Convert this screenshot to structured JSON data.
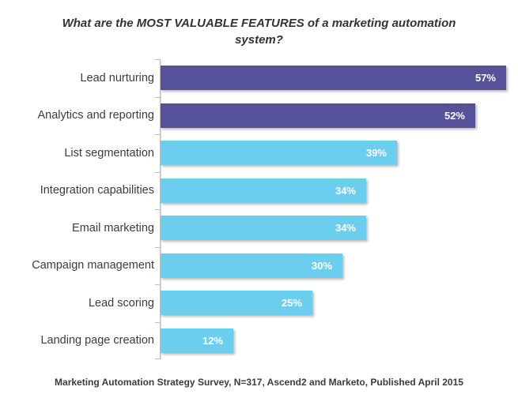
{
  "title": {
    "line1": "What are the MOST VALUABLE FEATURES of a marketing automation",
    "line2": "system?"
  },
  "footer": {
    "text": "Marketing Automation Strategy Survey, N=317, Ascend2 and Marketo, Published April 2015"
  },
  "colors": {
    "highlight_bar": "#55519b",
    "default_bar": "#6cceef",
    "axis": "#bdbdbd",
    "value_label": "#ffffff",
    "text": "#3b3b3b"
  },
  "chart_data": {
    "type": "bar",
    "orientation": "horizontal",
    "title": "What are the MOST VALUABLE FEATURES of a marketing automation system?",
    "source_note": "Marketing Automation Strategy Survey, N=317, Ascend2 and Marketo, Published April 2015",
    "categories": [
      "Lead nurturing",
      "Analytics and reporting",
      "List segmentation",
      "Integration capabilities",
      "Email marketing",
      "Campaign management",
      "Lead scoring",
      "Landing page creation"
    ],
    "values": [
      57,
      52,
      39,
      34,
      34,
      30,
      25,
      12
    ],
    "value_labels": [
      "57%",
      "52%",
      "39%",
      "34%",
      "34%",
      "30%",
      "25%",
      "12%"
    ],
    "bar_colors": [
      "#55519b",
      "#55519b",
      "#6cceef",
      "#6cceef",
      "#6cceef",
      "#6cceef",
      "#6cceef",
      "#6cceef"
    ],
    "xlim": [
      0,
      60
    ],
    "grid": false,
    "legend_position": "none",
    "value_label_position": "inside-end"
  }
}
